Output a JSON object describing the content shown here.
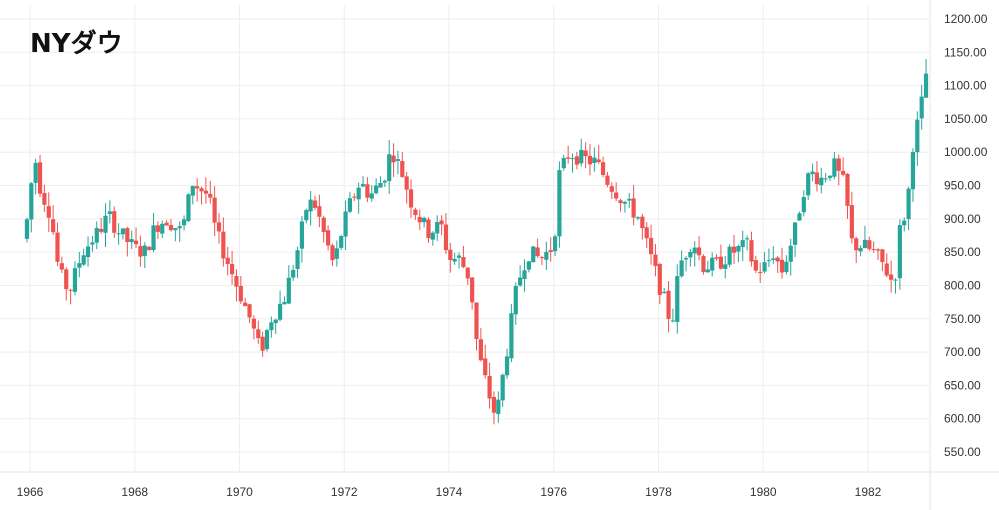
{
  "chart_data": {
    "type": "candlestick",
    "title": "NYダウ",
    "colors": {
      "up": "#26a69a",
      "down": "#ef5350",
      "grid": "#eeeeee",
      "text": "#333333"
    },
    "grid": true,
    "y_axis": {
      "position": "right",
      "range": [
        525,
        1200
      ],
      "ticks": [
        "1200.00",
        "1150.00",
        "1100.00",
        "1050.00",
        "1000.00",
        "950.00",
        "900.00",
        "850.00",
        "800.00",
        "750.00",
        "700.00",
        "650.00",
        "600.00",
        "550.00"
      ]
    },
    "x_axis": {
      "range": [
        1965.9,
        1983.25
      ],
      "ticks": [
        "1966",
        "1968",
        "1970",
        "1972",
        "1974",
        "1976",
        "1978",
        "1980",
        "1982"
      ]
    },
    "anchors": [
      [
        1965.9,
        870
      ],
      [
        1966.05,
        970
      ],
      [
        1966.1,
        990
      ],
      [
        1966.2,
        945
      ],
      [
        1966.4,
        905
      ],
      [
        1966.55,
        820
      ],
      [
        1966.75,
        790
      ],
      [
        1967.0,
        850
      ],
      [
        1967.3,
        880
      ],
      [
        1967.5,
        905
      ],
      [
        1967.7,
        880
      ],
      [
        1968.0,
        855
      ],
      [
        1968.2,
        850
      ],
      [
        1968.4,
        890
      ],
      [
        1968.6,
        900
      ],
      [
        1968.9,
        880
      ],
      [
        1969.1,
        955
      ],
      [
        1969.4,
        935
      ],
      [
        1969.55,
        880
      ],
      [
        1969.8,
        830
      ],
      [
        1970.0,
        790
      ],
      [
        1970.2,
        750
      ],
      [
        1970.4,
        700
      ],
      [
        1970.6,
        750
      ],
      [
        1970.85,
        780
      ],
      [
        1971.1,
        850
      ],
      [
        1971.3,
        925
      ],
      [
        1971.45,
        920
      ],
      [
        1971.6,
        880
      ],
      [
        1971.8,
        830
      ],
      [
        1971.95,
        880
      ],
      [
        1972.1,
        920
      ],
      [
        1972.3,
        955
      ],
      [
        1972.5,
        935
      ],
      [
        1972.75,
        960
      ],
      [
        1972.9,
        1005
      ],
      [
        1973.1,
        970
      ],
      [
        1973.3,
        920
      ],
      [
        1973.6,
        880
      ],
      [
        1973.85,
        890
      ],
      [
        1974.0,
        840
      ],
      [
        1974.2,
        840
      ],
      [
        1974.4,
        810
      ],
      [
        1974.55,
        700
      ],
      [
        1974.75,
        640
      ],
      [
        1974.9,
        600
      ],
      [
        1975.1,
        700
      ],
      [
        1975.3,
        800
      ],
      [
        1975.5,
        850
      ],
      [
        1975.75,
        840
      ],
      [
        1976.0,
        860
      ],
      [
        1976.1,
        965
      ],
      [
        1976.3,
        1000
      ],
      [
        1976.55,
        990
      ],
      [
        1976.8,
        985
      ],
      [
        1977.0,
        960
      ],
      [
        1977.3,
        930
      ],
      [
        1977.6,
        905
      ],
      [
        1977.9,
        830
      ],
      [
        1978.1,
        780
      ],
      [
        1978.25,
        740
      ],
      [
        1978.4,
        830
      ],
      [
        1978.65,
        870
      ],
      [
        1978.85,
        830
      ],
      [
        1979.1,
        830
      ],
      [
        1979.4,
        850
      ],
      [
        1979.7,
        860
      ],
      [
        1979.85,
        820
      ],
      [
        1980.05,
        830
      ],
      [
        1980.2,
        850
      ],
      [
        1980.35,
        820
      ],
      [
        1980.6,
        880
      ],
      [
        1980.75,
        940
      ],
      [
        1980.9,
        970
      ],
      [
        1981.1,
        960
      ],
      [
        1981.35,
        980
      ],
      [
        1981.55,
        950
      ],
      [
        1981.7,
        860
      ],
      [
        1981.9,
        860
      ],
      [
        1982.1,
        850
      ],
      [
        1982.3,
        830
      ],
      [
        1982.5,
        800
      ],
      [
        1982.6,
        880
      ],
      [
        1982.75,
        920
      ],
      [
        1982.85,
        1010
      ],
      [
        1983.0,
        1060
      ],
      [
        1983.15,
        1140
      ]
    ]
  }
}
